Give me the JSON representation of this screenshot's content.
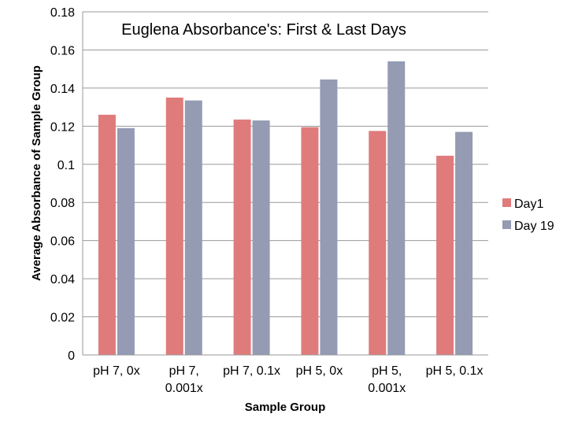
{
  "chart_data": {
    "type": "bar",
    "title": "Euglena Absorbance's: First & Last Days",
    "xlabel": "Sample Group",
    "ylabel": "Average Absorbance of Sample Group",
    "categories": [
      [
        "pH 7, 0x"
      ],
      [
        "pH 7,",
        "0.001x"
      ],
      [
        "pH 7, 0.1x"
      ],
      [
        "pH 5, 0x"
      ],
      [
        "pH 5,",
        "0.001x"
      ],
      [
        "pH 5, 0.1x"
      ]
    ],
    "series": [
      {
        "name": "Day1",
        "color": "#e07b7b",
        "values": [
          0.126,
          0.135,
          0.1235,
          0.1195,
          0.1175,
          0.1045
        ]
      },
      {
        "name": "Day 19",
        "color": "#949bb3",
        "values": [
          0.119,
          0.1335,
          0.123,
          0.1445,
          0.154,
          0.117
        ]
      }
    ],
    "ylim": [
      0,
      0.18
    ],
    "yticks": [
      "0",
      "0.02",
      "0.04",
      "0.06",
      "0.08",
      "0.1",
      "0.12",
      "0.14",
      "0.16",
      "0.18"
    ],
    "grid": true,
    "legend_position": "right"
  }
}
